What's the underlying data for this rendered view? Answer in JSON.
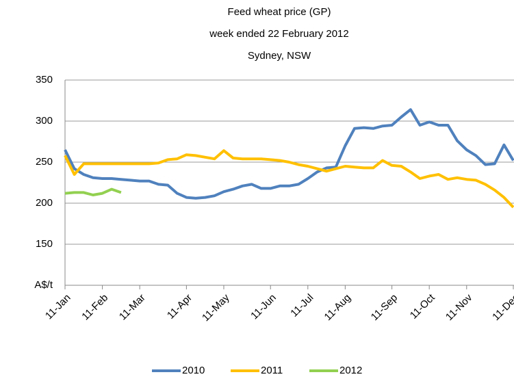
{
  "chart_data": {
    "type": "line",
    "title": [
      "Feed wheat price (GP)",
      "week ended 22 February 2012",
      "Sydney, NSW"
    ],
    "categories": [
      "11-Jan",
      null,
      null,
      null,
      "11-Feb",
      null,
      null,
      null,
      "11-Mar",
      null,
      null,
      null,
      null,
      "11-Apr",
      null,
      null,
      null,
      "11-May",
      null,
      null,
      null,
      null,
      "11-Jun",
      null,
      null,
      null,
      "11-Jul",
      null,
      null,
      null,
      "11-Aug",
      null,
      null,
      null,
      null,
      "11-Sep",
      null,
      null,
      null,
      "11-Oct",
      null,
      null,
      null,
      "11-Nov",
      null,
      null,
      null,
      null,
      "11-Dec"
    ],
    "series": [
      {
        "name": "2010",
        "color": "#4f81bd",
        "values": [
          265,
          242,
          235,
          231,
          230,
          230,
          229,
          228,
          227,
          227,
          223,
          222,
          212,
          207,
          206,
          207,
          209,
          214,
          217,
          221,
          223,
          218,
          218,
          221,
          221,
          223,
          230,
          238,
          243,
          244,
          270,
          291,
          292,
          291,
          294,
          295,
          305,
          314,
          295,
          299,
          295,
          295,
          276,
          265,
          258,
          247,
          248,
          271,
          252
        ]
      },
      {
        "name": "2011",
        "color": "#ffc000",
        "values": [
          258,
          235,
          248,
          248,
          248,
          248,
          248,
          248,
          248,
          248,
          249,
          253,
          254,
          259,
          258,
          256,
          254,
          264,
          255,
          254,
          254,
          254,
          253,
          252,
          250,
          247,
          245,
          242,
          239,
          242,
          245,
          244,
          243,
          243,
          252,
          246,
          245,
          238,
          230,
          233,
          235,
          229,
          231,
          229,
          228,
          223,
          216,
          207,
          195
        ]
      },
      {
        "name": "2012",
        "color": "#92d050",
        "values": [
          212,
          213,
          213,
          210,
          212,
          217,
          213,
          null,
          null,
          null,
          null,
          null,
          null,
          null,
          null,
          null,
          null,
          null,
          null,
          null,
          null,
          null,
          null,
          null,
          null,
          null,
          null,
          null,
          null,
          null,
          null,
          null,
          null,
          null,
          null,
          null,
          null,
          null,
          null,
          null,
          null,
          null,
          null,
          null,
          null,
          null,
          null,
          null,
          null
        ]
      }
    ],
    "ylim": [
      100,
      350
    ],
    "yticks": [
      {
        "value": 100,
        "label": "A$/t"
      },
      150,
      200,
      250,
      300,
      350
    ],
    "grid": true,
    "legend": "bottom"
  }
}
